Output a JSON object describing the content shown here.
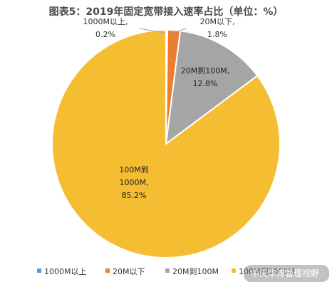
{
  "title": "图表5：2019年固定宽带接入速率占比（单位：%）",
  "watermark": "中天华溥管理视野",
  "chart_data": {
    "type": "pie",
    "title": "图表5：2019年固定宽带接入速率占比（单位：%）",
    "slices": [
      {
        "name": "1000M以上",
        "value": 0.2,
        "color": "#5b9bd5",
        "label_lines": [
          "1000M以上,",
          "0.2%"
        ]
      },
      {
        "name": "20M以下",
        "value": 1.8,
        "color": "#ed7d31",
        "label_lines": [
          "20M以下,",
          "1.8%"
        ]
      },
      {
        "name": "20M到100M",
        "value": 12.8,
        "color": "#a5a5a5",
        "label_lines": [
          "20M到100M,",
          "12.8%"
        ]
      },
      {
        "name": "100M到1000M",
        "value": 85.2,
        "color": "#f5bd32",
        "label_lines": [
          "100M到",
          "1000M,",
          "85.2%"
        ]
      }
    ],
    "legend": [
      "1000M以上",
      "20M以下",
      "20M到100M",
      "100M到1000M"
    ],
    "legend_position": "bottom",
    "start_angle_deg": 0,
    "direction": "clockwise"
  }
}
